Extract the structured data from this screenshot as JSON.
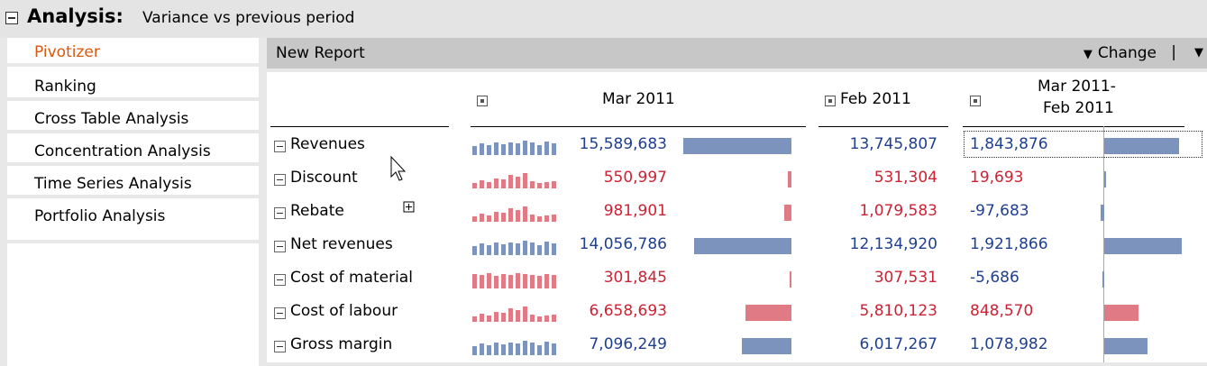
{
  "header": {
    "title": "Analysis:",
    "subtitle": "Variance vs previous period"
  },
  "sidebar": {
    "items": [
      {
        "label": "Pivotizer",
        "active": true
      },
      {
        "label": "Ranking"
      },
      {
        "label": "Cross Table Analysis"
      },
      {
        "label": "Concentration Analysis"
      },
      {
        "label": "Time Series Analysis"
      },
      {
        "label": "Portfolio Analysis"
      }
    ]
  },
  "report": {
    "name": "New Report",
    "change_label": "Change",
    "separator": "|"
  },
  "table": {
    "columns": [
      {
        "label": "Mar 2011"
      },
      {
        "label": "Feb 2011"
      },
      {
        "label_line1": "Mar 2011-",
        "label_line2": "Feb 2011"
      }
    ],
    "rows": [
      {
        "label": "Revenues",
        "mar": "15,589,683",
        "feb": "13,745,807",
        "var": "1,843,876",
        "mar_val": 15589683,
        "var_val": 1843876,
        "color": "blue"
      },
      {
        "label": "Discount",
        "mar": "550,997",
        "feb": "531,304",
        "var": "19,693",
        "mar_val": 550997,
        "var_val": 19693,
        "color": "red"
      },
      {
        "label": "Rebate",
        "mar": "981,901",
        "feb": "1,079,583",
        "var": "-97,683",
        "mar_val": 981901,
        "var_val": -97683,
        "color": "red"
      },
      {
        "label": "Net revenues",
        "mar": "14,056,786",
        "feb": "12,134,920",
        "var": "1,921,866",
        "mar_val": 14056786,
        "var_val": 1921866,
        "color": "blue"
      },
      {
        "label": "Cost of material",
        "mar": "301,845",
        "feb": "307,531",
        "var": "-5,686",
        "mar_val": 301845,
        "var_val": -5686,
        "color": "red"
      },
      {
        "label": "Cost of labour",
        "mar": "6,658,693",
        "feb": "5,810,123",
        "var": "848,570",
        "mar_val": 6658693,
        "var_val": 848570,
        "color": "red"
      },
      {
        "label": "Gross margin",
        "mar": "7,096,249",
        "feb": "6,017,267",
        "var": "1,078,982",
        "mar_val": 7096249,
        "var_val": 1078982,
        "color": "blue"
      }
    ]
  },
  "colors": {
    "blue_bar": "#7b93bd",
    "red_bar": "#e07b86",
    "accent": "#d9570e"
  }
}
